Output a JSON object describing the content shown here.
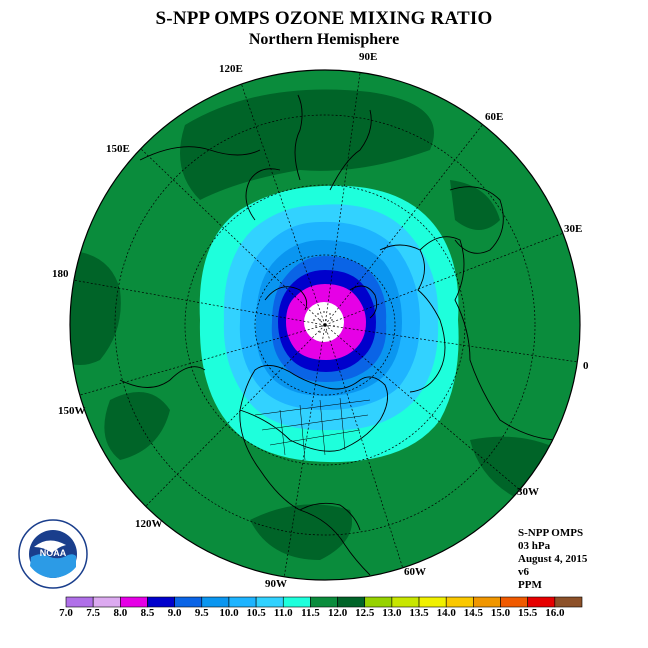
{
  "title": "S-NPP OMPS OZONE MIXING RATIO",
  "subtitle": "Northern Hemisphere",
  "longitude_labels": [
    "90E",
    "60E",
    "30E",
    "0",
    "30W",
    "60W",
    "90W",
    "120W",
    "150W",
    "180",
    "150E",
    "120E"
  ],
  "info": {
    "instrument": "S-NPP OMPS",
    "level": "03 hPa",
    "date": "August 4, 2015",
    "version": "v6",
    "units": "PPM"
  },
  "logo_text": "NOAA",
  "colorbar": {
    "ticks": [
      "7.0",
      "7.5",
      "8.0",
      "8.5",
      "9.0",
      "9.5",
      "10.0",
      "10.5",
      "11.0",
      "11.5",
      "12.0",
      "12.5",
      "13.0",
      "13.5",
      "14.0",
      "14.5",
      "15.0",
      "15.5",
      "16.0"
    ],
    "colors": [
      "#b070e8",
      "#dcaaf0",
      "#e600e6",
      "#0000cc",
      "#0a64e6",
      "#0a96f0",
      "#1eb4ff",
      "#32d2ff",
      "#1effdc",
      "#0a8c3c",
      "#006428",
      "#96d200",
      "#c8e600",
      "#f0f000",
      "#fac800",
      "#f09600",
      "#f05a00",
      "#e60000",
      "#8c5028"
    ]
  },
  "map": {
    "center_level": "< 8.0",
    "band_colors": {
      "outer": "#0a8c3c",
      "dark": "#006428",
      "cyan": "#1effdc",
      "light_blue": "#1eb4ff",
      "mid_blue": "#0a96f0",
      "blue": "#0a64e6",
      "dark_blue": "#0000cc",
      "magenta": "#e600e6",
      "pole": "#ffffff"
    }
  }
}
